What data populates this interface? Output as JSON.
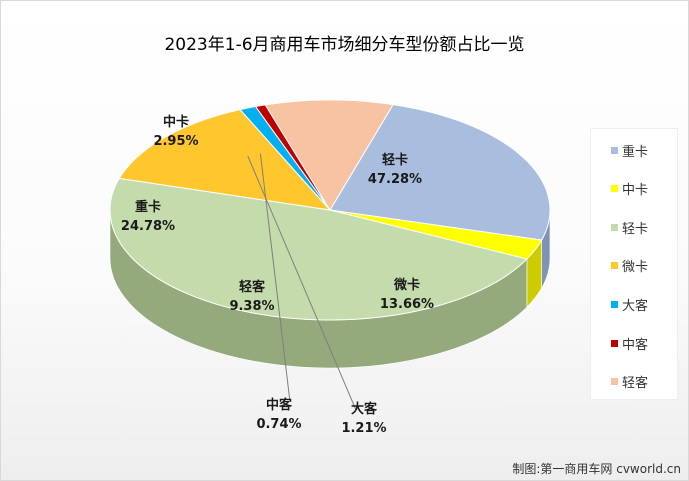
{
  "title": "2023年1-6月商用车市场细分车型份额占比一览",
  "credit": "制图:第一商用车网 cvworld.cn",
  "chart_data": {
    "type": "pie",
    "title": "2023年1-6月商用车市场细分车型份额占比一览",
    "slices": [
      {
        "name": "重卡",
        "value": 24.78,
        "label": "24.78%",
        "color": "#a9bddf",
        "dark": "#7f93b7"
      },
      {
        "name": "中卡",
        "value": 2.95,
        "label": "2.95%",
        "color": "#ffff00",
        "dark": "#cccc00"
      },
      {
        "name": "轻卡",
        "value": 47.28,
        "label": "47.28%",
        "color": "#c4dcab",
        "dark": "#94a97c"
      },
      {
        "name": "微卡",
        "value": 13.66,
        "label": "13.66%",
        "color": "#ffc62e",
        "dark": "#6b5b21"
      },
      {
        "name": "大客",
        "value": 1.21,
        "label": "1.21%",
        "color": "#00b0f0",
        "dark": "#007fae"
      },
      {
        "name": "中客",
        "value": 0.74,
        "label": "0.74%",
        "color": "#c00000",
        "dark": "#8b0000"
      },
      {
        "name": "轻客",
        "value": 9.38,
        "label": "9.38%",
        "color": "#f7c3a2",
        "dark": "#b58c70"
      }
    ],
    "legend": {
      "position": "right",
      "entries": [
        "重卡",
        "中卡",
        "轻卡",
        "微卡",
        "大客",
        "中客",
        "轻客"
      ]
    }
  }
}
